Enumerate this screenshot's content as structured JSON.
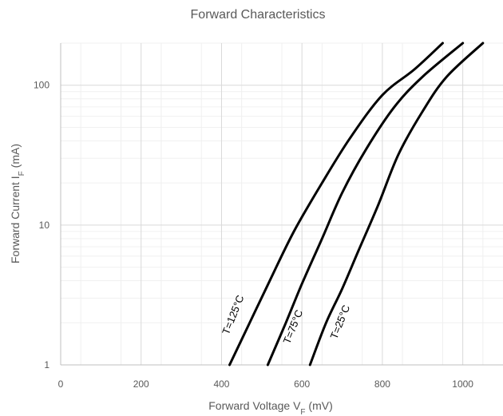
{
  "chart_data": {
    "type": "line",
    "title": "Forward Characteristics",
    "xlabel_prefix": "Forward Voltage V",
    "xlabel_sub": "F",
    "xlabel_suffix": " (mV)",
    "ylabel_prefix": "Forward Current I",
    "ylabel_sub": "F",
    "ylabel_suffix": " (mA)",
    "xlim": [
      0,
      1100
    ],
    "ylim": [
      1,
      200
    ],
    "y_scale": "log",
    "x_ticks": [
      "0",
      "200",
      "400",
      "600",
      "800",
      "1000"
    ],
    "y_ticks": [
      "1",
      "10",
      "100"
    ],
    "grid": true,
    "series": [
      {
        "name": "T=125°C",
        "x": [
          420,
          470,
          520,
          580,
          650,
          720,
          800,
          880,
          950
        ],
        "y": [
          1,
          2,
          4,
          9,
          20,
          42,
          85,
          130,
          200
        ],
        "color": "#000000"
      },
      {
        "name": "T=75°C",
        "x": [
          515,
          560,
          600,
          650,
          700,
          760,
          830,
          900,
          1000
        ],
        "y": [
          1,
          2,
          3.8,
          8,
          17,
          35,
          70,
          115,
          200
        ],
        "color": "#000000"
      },
      {
        "name": "T=25°C",
        "x": [
          620,
          660,
          700,
          740,
          790,
          840,
          900,
          960,
          1050
        ],
        "y": [
          1,
          2,
          3.5,
          6.5,
          14,
          32,
          65,
          115,
          200
        ],
        "color": "#000000"
      }
    ]
  }
}
